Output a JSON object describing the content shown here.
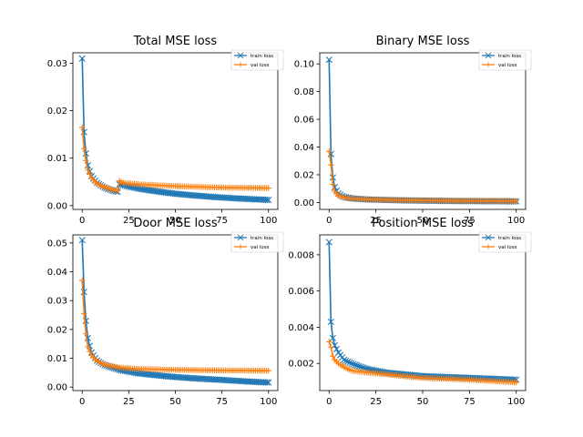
{
  "colors": {
    "train": "#1f77b4",
    "val": "#ff7f0e"
  },
  "chart_data": [
    {
      "type": "line",
      "title": "Total MSE loss",
      "xlim": [
        -5,
        105
      ],
      "ylim": [
        -0.0008,
        0.0322
      ],
      "xticks": [
        "0",
        "25",
        "50",
        "75",
        "100"
      ],
      "yticks": [
        {
          "v": 0.0,
          "label": "0.00"
        },
        {
          "v": 0.01,
          "label": "0.01"
        },
        {
          "v": 0.02,
          "label": "0.02"
        },
        {
          "v": 0.03,
          "label": "0.03"
        }
      ],
      "legend": {
        "position": "top-right",
        "entries": [
          "train loss",
          "val loss"
        ]
      },
      "series": [
        {
          "name": "train loss",
          "marker": "x",
          "values": {
            "k": [
              [
                0,
                0.031
              ],
              [
                1,
                0.0155
              ],
              [
                2,
                0.011
              ],
              [
                3,
                0.0085
              ],
              [
                5,
                0.0062
              ],
              [
                8,
                0.0048
              ],
              [
                12,
                0.0038
              ],
              [
                16,
                0.0032
              ],
              [
                19,
                0.0029
              ],
              [
                20,
                0.0045
              ],
              [
                22,
                0.0043
              ],
              [
                30,
                0.0036
              ],
              [
                50,
                0.0025
              ],
              [
                75,
                0.0017
              ],
              [
                100,
                0.0012
              ]
            ]
          }
        },
        {
          "name": "val loss",
          "marker": "+",
          "values": {
            "k": [
              [
                0,
                0.0165
              ],
              [
                1,
                0.012
              ],
              [
                2,
                0.0095
              ],
              [
                3,
                0.0075
              ],
              [
                5,
                0.0058
              ],
              [
                8,
                0.0046
              ],
              [
                12,
                0.0039
              ],
              [
                16,
                0.0034
              ],
              [
                19,
                0.0031
              ],
              [
                20,
                0.0052
              ],
              [
                22,
                0.0048
              ],
              [
                30,
                0.0045
              ],
              [
                50,
                0.0041
              ],
              [
                75,
                0.0038
              ],
              [
                100,
                0.0037
              ]
            ]
          }
        }
      ]
    },
    {
      "type": "line",
      "title": "Binary MSE loss",
      "xlim": [
        -5,
        105
      ],
      "ylim": [
        -0.005,
        0.108
      ],
      "xticks": [
        "0",
        "25",
        "50",
        "75",
        "100"
      ],
      "yticks": [
        {
          "v": 0.0,
          "label": "0.00"
        },
        {
          "v": 0.02,
          "label": "0.02"
        },
        {
          "v": 0.04,
          "label": "0.04"
        },
        {
          "v": 0.06,
          "label": "0.06"
        },
        {
          "v": 0.08,
          "label": "0.08"
        },
        {
          "v": 0.1,
          "label": "0.10"
        }
      ],
      "legend": {
        "position": "top-right",
        "entries": [
          "train loss",
          "val loss"
        ]
      },
      "series": [
        {
          "name": "train loss",
          "marker": "x",
          "values": {
            "k": [
              [
                0,
                0.103
              ],
              [
                1,
                0.035
              ],
              [
                2,
                0.018
              ],
              [
                3,
                0.011
              ],
              [
                5,
                0.0065
              ],
              [
                8,
                0.004
              ],
              [
                12,
                0.003
              ],
              [
                20,
                0.0022
              ],
              [
                40,
                0.0015
              ],
              [
                70,
                0.001
              ],
              [
                100,
                0.0008
              ]
            ]
          }
        },
        {
          "name": "val loss",
          "marker": "+",
          "values": {
            "k": [
              [
                0,
                0.037
              ],
              [
                1,
                0.027
              ],
              [
                2,
                0.013
              ],
              [
                3,
                0.008
              ],
              [
                5,
                0.005
              ],
              [
                8,
                0.0035
              ],
              [
                12,
                0.0028
              ],
              [
                20,
                0.0022
              ],
              [
                40,
                0.0016
              ],
              [
                70,
                0.0012
              ],
              [
                100,
                0.001
              ]
            ]
          }
        }
      ]
    },
    {
      "type": "line",
      "title": "Door MSE loss",
      "xlim": [
        -5,
        105
      ],
      "ylim": [
        -0.0012,
        0.0528
      ],
      "xticks": [
        "0",
        "25",
        "50",
        "75",
        "100"
      ],
      "yticks": [
        {
          "v": 0.0,
          "label": "0.00"
        },
        {
          "v": 0.01,
          "label": "0.01"
        },
        {
          "v": 0.02,
          "label": "0.02"
        },
        {
          "v": 0.03,
          "label": "0.03"
        },
        {
          "v": 0.04,
          "label": "0.04"
        },
        {
          "v": 0.05,
          "label": "0.05"
        }
      ],
      "legend": {
        "position": "top-right",
        "entries": [
          "train loss",
          "val loss"
        ]
      },
      "series": [
        {
          "name": "train loss",
          "marker": "x",
          "values": {
            "k": [
              [
                0,
                0.051
              ],
              [
                1,
                0.033
              ],
              [
                2,
                0.023
              ],
              [
                3,
                0.017
              ],
              [
                5,
                0.012
              ],
              [
                8,
                0.0092
              ],
              [
                12,
                0.0076
              ],
              [
                20,
                0.006
              ],
              [
                30,
                0.0048
              ],
              [
                50,
                0.0035
              ],
              [
                75,
                0.0025
              ],
              [
                100,
                0.0016
              ]
            ]
          }
        },
        {
          "name": "val loss",
          "marker": "+",
          "values": {
            "k": [
              [
                0,
                0.037
              ],
              [
                1,
                0.0255
              ],
              [
                2,
                0.0185
              ],
              [
                3,
                0.014
              ],
              [
                5,
                0.011
              ],
              [
                8,
                0.009
              ],
              [
                12,
                0.0078
              ],
              [
                20,
                0.0068
              ],
              [
                30,
                0.0063
              ],
              [
                50,
                0.006
              ],
              [
                75,
                0.0058
              ],
              [
                100,
                0.0057
              ]
            ]
          }
        }
      ]
    },
    {
      "type": "line",
      "title": "Position MSE loss",
      "xlim": [
        -5,
        105
      ],
      "ylim": [
        0.0005,
        0.0091
      ],
      "xticks": [
        "0",
        "25",
        "50",
        "75",
        "100"
      ],
      "yticks": [
        {
          "v": 0.002,
          "label": "0.002"
        },
        {
          "v": 0.004,
          "label": "0.004"
        },
        {
          "v": 0.006,
          "label": "0.006"
        },
        {
          "v": 0.008,
          "label": "0.008"
        }
      ],
      "legend": {
        "position": "top-right",
        "entries": [
          "train loss",
          "val loss"
        ]
      },
      "series": [
        {
          "name": "train loss",
          "marker": "x",
          "values": {
            "k": [
              [
                0,
                0.0087
              ],
              [
                1,
                0.0043
              ],
              [
                2,
                0.0034
              ],
              [
                3,
                0.003
              ],
              [
                5,
                0.0026
              ],
              [
                8,
                0.0022
              ],
              [
                12,
                0.002
              ],
              [
                20,
                0.0017
              ],
              [
                30,
                0.0015
              ],
              [
                50,
                0.0013
              ],
              [
                75,
                0.0012
              ],
              [
                100,
                0.0011
              ]
            ]
          }
        },
        {
          "name": "val loss",
          "marker": "+",
          "values": {
            "k": [
              [
                0,
                0.0032
              ],
              [
                1,
                0.0029
              ],
              [
                2,
                0.0024
              ],
              [
                3,
                0.0022
              ],
              [
                5,
                0.002
              ],
              [
                8,
                0.0018
              ],
              [
                12,
                0.0016
              ],
              [
                20,
                0.0015
              ],
              [
                30,
                0.0014
              ],
              [
                50,
                0.0012
              ],
              [
                75,
                0.0011
              ],
              [
                100,
                0.00095
              ]
            ]
          }
        }
      ]
    }
  ]
}
